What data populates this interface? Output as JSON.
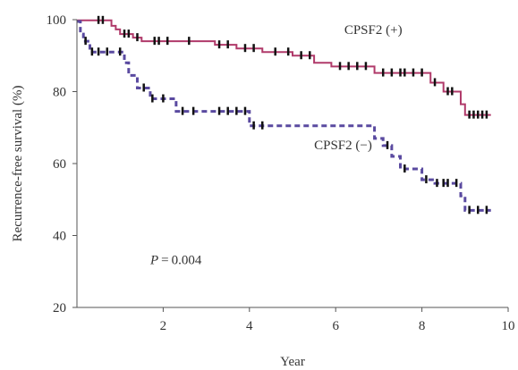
{
  "chart_data": {
    "type": "line",
    "subtype": "kaplan-meier survival curve",
    "xlabel": "Year",
    "ylabel": "Recurrence-free survival (%)",
    "xlim": [
      0,
      10
    ],
    "ylim": [
      20,
      100
    ],
    "xticks": [
      2,
      4,
      6,
      8,
      10
    ],
    "yticks": [
      20,
      40,
      60,
      80,
      100
    ],
    "grid": false,
    "annotations": [
      {
        "text": "P = 0.004",
        "x": 1.7,
        "y": 32
      }
    ],
    "series": [
      {
        "name": "CPSF2 (+)",
        "label_position": {
          "x": 6.2,
          "y": 96
        },
        "color": "#b03a6a",
        "style": "solid",
        "censor_color": "#111111",
        "steps": [
          [
            0,
            99.8
          ],
          [
            0.8,
            98.3
          ],
          [
            0.9,
            97.3
          ],
          [
            1.0,
            96.0
          ],
          [
            1.3,
            95.0
          ],
          [
            1.5,
            94.0
          ],
          [
            3.2,
            93.0
          ],
          [
            3.7,
            92.0
          ],
          [
            4.3,
            91.0
          ],
          [
            5.0,
            90.0
          ],
          [
            5.5,
            88.0
          ],
          [
            5.9,
            87.0
          ],
          [
            6.9,
            85.2
          ],
          [
            8.2,
            82.5
          ],
          [
            8.5,
            80.0
          ],
          [
            8.9,
            76.5
          ],
          [
            9.0,
            73.5
          ],
          [
            9.6,
            73.5
          ]
        ],
        "censored": [
          [
            0.5,
            99.8
          ],
          [
            0.6,
            99.8
          ],
          [
            1.1,
            96.0
          ],
          [
            1.2,
            96.0
          ],
          [
            1.4,
            95.0
          ],
          [
            1.8,
            94.0
          ],
          [
            1.9,
            94.0
          ],
          [
            2.1,
            94.0
          ],
          [
            2.6,
            94.0
          ],
          [
            3.3,
            93.0
          ],
          [
            3.5,
            93.0
          ],
          [
            3.9,
            92.0
          ],
          [
            4.1,
            92.0
          ],
          [
            4.6,
            91.0
          ],
          [
            4.9,
            91.0
          ],
          [
            5.2,
            90.0
          ],
          [
            5.4,
            90.0
          ],
          [
            6.1,
            87.0
          ],
          [
            6.3,
            87.0
          ],
          [
            6.5,
            87.0
          ],
          [
            6.7,
            87.0
          ],
          [
            7.1,
            85.2
          ],
          [
            7.3,
            85.2
          ],
          [
            7.5,
            85.2
          ],
          [
            7.6,
            85.2
          ],
          [
            7.8,
            85.2
          ],
          [
            8.0,
            85.2
          ],
          [
            8.3,
            82.5
          ],
          [
            8.6,
            80.0
          ],
          [
            8.7,
            80.0
          ],
          [
            9.1,
            73.5
          ],
          [
            9.2,
            73.5
          ],
          [
            9.3,
            73.5
          ],
          [
            9.4,
            73.5
          ],
          [
            9.5,
            73.5
          ]
        ]
      },
      {
        "name": "CPSF2 (−)",
        "label_position": {
          "x": 5.5,
          "y": 64
        },
        "color": "#5a4aa0",
        "style": "dashed",
        "censor_color": "#111111",
        "steps": [
          [
            0,
            99.5
          ],
          [
            0.08,
            96.0
          ],
          [
            0.15,
            94.0
          ],
          [
            0.3,
            91.0
          ],
          [
            1.1,
            88.0
          ],
          [
            1.2,
            84.5
          ],
          [
            1.4,
            81.0
          ],
          [
            1.7,
            78.0
          ],
          [
            2.3,
            74.5
          ],
          [
            4.0,
            70.5
          ],
          [
            6.9,
            67.0
          ],
          [
            7.1,
            65.0
          ],
          [
            7.3,
            62.0
          ],
          [
            7.5,
            58.5
          ],
          [
            8.0,
            55.5
          ],
          [
            8.3,
            54.5
          ],
          [
            8.9,
            51.0
          ],
          [
            9.0,
            47.0
          ],
          [
            9.6,
            47.0
          ]
        ],
        "censored": [
          [
            0.2,
            94.0
          ],
          [
            0.35,
            91.0
          ],
          [
            0.5,
            91.0
          ],
          [
            0.7,
            91.0
          ],
          [
            1.0,
            91.0
          ],
          [
            1.55,
            81.0
          ],
          [
            1.75,
            78.0
          ],
          [
            2.0,
            78.0
          ],
          [
            2.45,
            74.5
          ],
          [
            2.7,
            74.5
          ],
          [
            3.3,
            74.5
          ],
          [
            3.5,
            74.5
          ],
          [
            3.7,
            74.5
          ],
          [
            3.9,
            74.5
          ],
          [
            4.1,
            70.5
          ],
          [
            4.3,
            70.5
          ],
          [
            7.2,
            65.0
          ],
          [
            7.6,
            58.5
          ],
          [
            8.1,
            55.5
          ],
          [
            8.35,
            54.5
          ],
          [
            8.5,
            54.5
          ],
          [
            8.6,
            54.5
          ],
          [
            8.8,
            54.5
          ],
          [
            9.1,
            47.0
          ],
          [
            9.3,
            47.0
          ],
          [
            9.5,
            47.0
          ]
        ]
      }
    ]
  }
}
